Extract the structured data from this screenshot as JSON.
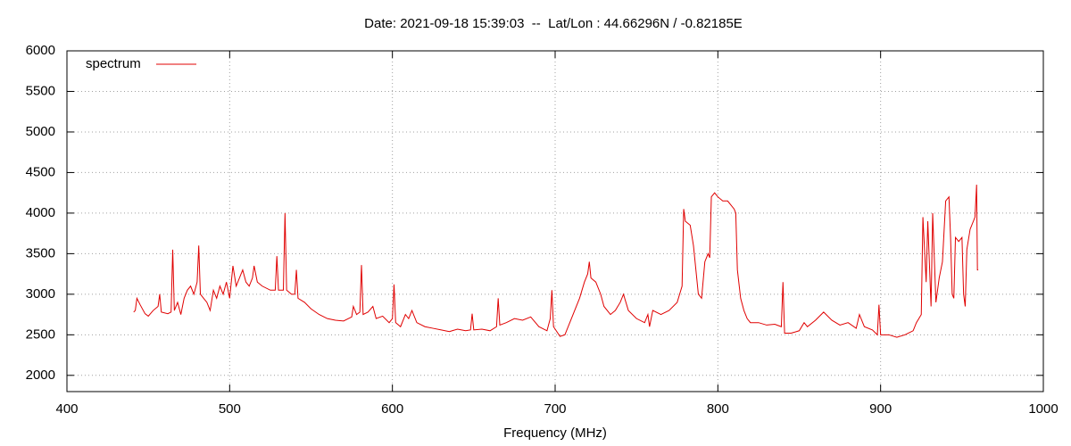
{
  "chart_data": {
    "type": "line",
    "title": "Date: 2021-09-18 15:39:03  --  Lat/Lon : 44.66296N / -0.82185E",
    "x_label": "Frequency (MHz)",
    "x": [
      441,
      442,
      443,
      445,
      448,
      450,
      453,
      456,
      457,
      458,
      462,
      464,
      465,
      466,
      468,
      470,
      472,
      474,
      476,
      478,
      480,
      481,
      482,
      484,
      486,
      488,
      490,
      492,
      494,
      496,
      498,
      500,
      502,
      504,
      506,
      508,
      510,
      512,
      514,
      515,
      517,
      520,
      525,
      528,
      529,
      530,
      533,
      534,
      535,
      538,
      540,
      541,
      542,
      546,
      550,
      555,
      560,
      565,
      570,
      575,
      576,
      578,
      580,
      581,
      582,
      585,
      588,
      590,
      594,
      598,
      600,
      601,
      602,
      605,
      608,
      610,
      612,
      615,
      620,
      625,
      630,
      635,
      640,
      645,
      648,
      649,
      650,
      655,
      660,
      664,
      665,
      666,
      670,
      675,
      680,
      685,
      690,
      695,
      697,
      698,
      699,
      703,
      706,
      710,
      715,
      718,
      720,
      721,
      722,
      725,
      728,
      730,
      734,
      737,
      740,
      742,
      745,
      750,
      755,
      757,
      758,
      760,
      765,
      770,
      775,
      778,
      779,
      780,
      783,
      785,
      788,
      790,
      792,
      794,
      795,
      796,
      798,
      800,
      803,
      806,
      808,
      810,
      811,
      812,
      814,
      816,
      818,
      820,
      825,
      830,
      835,
      839,
      840,
      841,
      845,
      850,
      853,
      855,
      860,
      865,
      870,
      875,
      880,
      885,
      887,
      890,
      895,
      898,
      899,
      900,
      905,
      910,
      915,
      920,
      922,
      925,
      926,
      928,
      929,
      931,
      932,
      934,
      936,
      938,
      940,
      942,
      943,
      944,
      945,
      946,
      948,
      950,
      951,
      952,
      953,
      955,
      957,
      958,
      959,
      959.5,
      960
    ],
    "series": [
      {
        "name": "spectrum",
        "color": "#e00000",
        "values": [
          2780,
          2800,
          2950,
          2870,
          2760,
          2730,
          2800,
          2850,
          3000,
          2780,
          2760,
          2780,
          3550,
          2800,
          2900,
          2750,
          2950,
          3050,
          3100,
          3000,
          3150,
          3600,
          3000,
          2950,
          2900,
          2800,
          3050,
          2950,
          3100,
          3000,
          3150,
          2950,
          3350,
          3100,
          3200,
          3300,
          3150,
          3100,
          3200,
          3350,
          3150,
          3100,
          3050,
          3050,
          3470,
          3050,
          3050,
          4000,
          3050,
          3000,
          3000,
          3300,
          2950,
          2900,
          2820,
          2750,
          2700,
          2680,
          2670,
          2720,
          2850,
          2750,
          2780,
          3360,
          2750,
          2780,
          2850,
          2700,
          2730,
          2650,
          2700,
          3120,
          2650,
          2600,
          2750,
          2700,
          2800,
          2650,
          2600,
          2580,
          2560,
          2540,
          2570,
          2550,
          2560,
          2760,
          2560,
          2570,
          2550,
          2600,
          2950,
          2620,
          2650,
          2700,
          2680,
          2720,
          2600,
          2550,
          2700,
          3050,
          2600,
          2480,
          2500,
          2700,
          2950,
          3150,
          3250,
          3400,
          3200,
          3150,
          3000,
          2850,
          2750,
          2800,
          2900,
          3000,
          2800,
          2700,
          2650,
          2750,
          2600,
          2800,
          2750,
          2800,
          2900,
          3100,
          4050,
          3900,
          3850,
          3600,
          3000,
          2950,
          3400,
          3500,
          3450,
          4200,
          4250,
          4200,
          4150,
          4150,
          4100,
          4050,
          4000,
          3300,
          2950,
          2800,
          2700,
          2650,
          2650,
          2620,
          2630,
          2600,
          3150,
          2520,
          2520,
          2550,
          2650,
          2600,
          2680,
          2780,
          2680,
          2620,
          2650,
          2580,
          2750,
          2600,
          2560,
          2500,
          2870,
          2500,
          2500,
          2470,
          2500,
          2550,
          2650,
          2750,
          3950,
          3150,
          3900,
          2850,
          4000,
          2900,
          3200,
          3400,
          4150,
          4200,
          3700,
          3000,
          2950,
          3700,
          3650,
          3700,
          3000,
          2850,
          3550,
          3800,
          3900,
          3950,
          4350,
          3300,
          3300
        ]
      }
    ],
    "xlim": [
      400,
      1000
    ],
    "xticks": [
      400,
      500,
      600,
      700,
      800,
      900,
      1000
    ],
    "ylim": [
      1800,
      6000
    ],
    "yticks": [
      2000,
      2500,
      3000,
      3500,
      4000,
      4500,
      5000,
      5500,
      6000
    ],
    "grid": true,
    "legend": "top-left"
  }
}
